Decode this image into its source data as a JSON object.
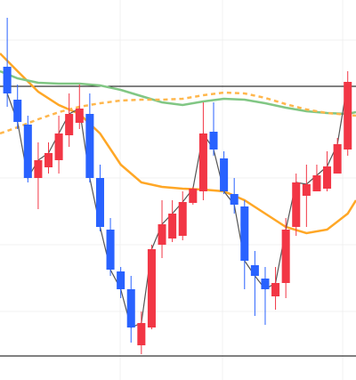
{
  "chart_data": {
    "type": "candlestick",
    "x": [
      1,
      2,
      3,
      4,
      5,
      6,
      7,
      8,
      9,
      10,
      11,
      12,
      13,
      14,
      15,
      16,
      17,
      18,
      19,
      20,
      21,
      22,
      23,
      24,
      25,
      26,
      27,
      28,
      29,
      30,
      31,
      32,
      33,
      34
    ],
    "open": [
      352,
      315,
      287,
      227,
      239,
      247,
      275,
      289,
      299,
      227,
      169,
      122,
      102,
      39,
      59,
      152,
      159,
      162,
      199,
      212,
      279,
      249,
      209,
      195,
      129,
      114,
      94,
      109,
      172,
      207,
      212,
      215,
      232,
      259
    ],
    "high": [
      407,
      332,
      297,
      267,
      267,
      297,
      322,
      332,
      322,
      242,
      182,
      127,
      117,
      77,
      152,
      202,
      202,
      212,
      217,
      312,
      312,
      257,
      227,
      202,
      145,
      127,
      127,
      182,
      232,
      242,
      242,
      257,
      272,
      347
    ],
    "low": [
      307,
      282,
      222,
      192,
      232,
      232,
      262,
      282,
      222,
      167,
      117,
      92,
      42,
      29,
      57,
      137,
      155,
      157,
      197,
      202,
      252,
      209,
      187,
      102,
      72,
      62,
      79,
      92,
      162,
      172,
      212,
      212,
      232,
      252
    ],
    "close": [
      322,
      290,
      227,
      247,
      255,
      277,
      299,
      305,
      227,
      172,
      124,
      102,
      59,
      64,
      147,
      175,
      187,
      200,
      215,
      277,
      259,
      212,
      197,
      134,
      117,
      102,
      109,
      169,
      222,
      220,
      230,
      240,
      265,
      335
    ],
    "up_color": "#f23645",
    "down_color": "#2962ff",
    "close_line_color": "#555555",
    "overlays": [
      {
        "color": "#ffa726",
        "dashed": false,
        "x": [
          0.3,
          2,
          4,
          6,
          8,
          10,
          12,
          14,
          16,
          18,
          20,
          22,
          24,
          26,
          28,
          30,
          32,
          34,
          34.8
        ],
        "values": [
          367,
          347,
          324,
          309,
          299,
          277,
          242,
          222,
          217,
          215,
          214,
          212,
          202,
          187,
          172,
          165,
          169,
          187,
          202
        ]
      },
      {
        "color": "#81c784",
        "dashed": false,
        "x": [
          0.3,
          2,
          4,
          6,
          8,
          10,
          12,
          14,
          16,
          18,
          20,
          22,
          24,
          26,
          28,
          30,
          32,
          34,
          34.8
        ],
        "values": [
          347,
          339,
          334,
          333,
          333,
          331,
          326,
          319,
          312,
          309,
          313,
          316,
          315,
          311,
          306,
          302,
          300,
          299,
          301
        ]
      },
      {
        "color": "#ffb74d",
        "dashed": true,
        "x": [
          0.3,
          2,
          4,
          6,
          8,
          10,
          12,
          14,
          16,
          18,
          20,
          22,
          24,
          26,
          28,
          30,
          32,
          34,
          34.8
        ],
        "values": [
          277,
          284,
          293,
          301,
          307,
          311,
          314,
          315,
          315,
          316,
          320,
          323,
          322,
          317,
          310,
          304,
          300,
          298,
          297
        ]
      }
    ],
    "hlines": [
      330,
      27
    ],
    "xlim": [
      0.3,
      34.8
    ],
    "ylim": [
      0,
      427
    ]
  }
}
